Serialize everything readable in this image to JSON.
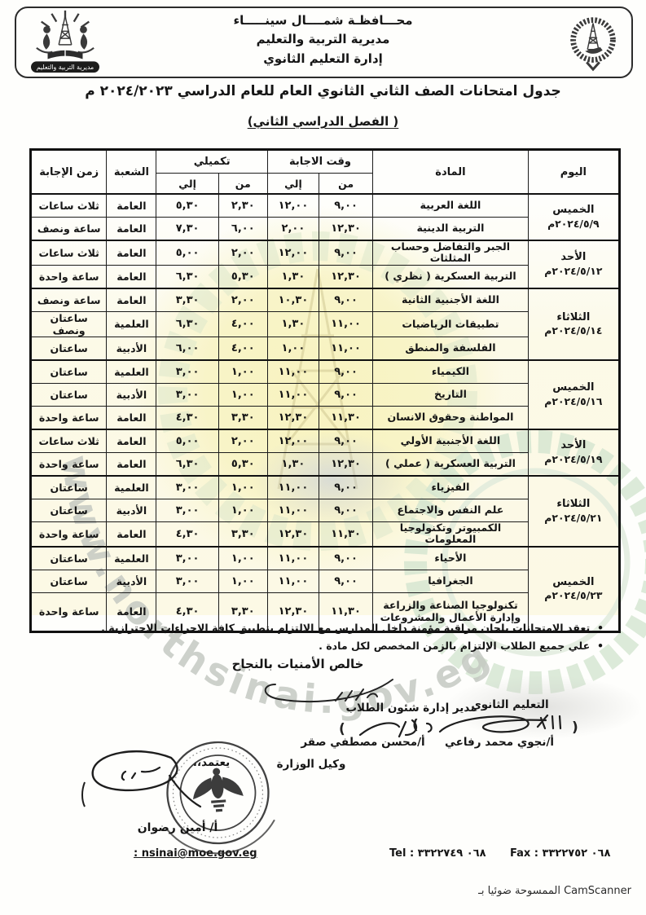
{
  "header": {
    "org_lines": [
      "محـــافظـة شمــــال سينـــــاء",
      "مديرية التربية والتعليم",
      "إدارة التعليم الثانوي"
    ],
    "left_logo_banner": "مديرية التربية والتعليم"
  },
  "title": "جدول امتحانات الصف الثاني الثانوي العام للعام الدراسي ٢٠٢٤/٢٠٢٣ م",
  "subtitle": "( الفصل الدراسي الثاني)",
  "table": {
    "headers": {
      "day": "اليوم",
      "subject": "المادة",
      "answer_time": "وقت الاجابة",
      "supplementary": "تكميلي",
      "from": "من",
      "to": "إلي",
      "branch": "الشعبة",
      "duration": "زمن الإجابة"
    },
    "days": [
      {
        "day": "الخميس",
        "date": "٢٠٢٤/٥/٩م",
        "rows": [
          {
            "subject": "اللغة العربية",
            "from": "٩,٠٠",
            "to": "١٢,٠٠",
            "sup_from": "٢,٣٠",
            "sup_to": "٥,٣٠",
            "branch": "العامة",
            "duration": "ثلاث ساعات"
          },
          {
            "subject": "التربية الدينية",
            "from": "١٢,٣٠",
            "to": "٢,٠٠",
            "sup_from": "٦,٠٠",
            "sup_to": "٧,٣٠",
            "branch": "العامة",
            "duration": "ساعة ونصف"
          }
        ]
      },
      {
        "day": "الأحد",
        "date": "٢٠٢٤/٥/١٢م",
        "rows": [
          {
            "subject": "الجبر والتفاضل وحساب المثلثات",
            "from": "٩,٠٠",
            "to": "١٢,٠٠",
            "sup_from": "٢,٠٠",
            "sup_to": "٥,٠٠",
            "branch": "العامة",
            "duration": "ثلاث ساعات"
          },
          {
            "subject": "التربية العسكرية ( نظري )",
            "from": "١٢,٣٠",
            "to": "١,٣٠",
            "sup_from": "٥,٣٠",
            "sup_to": "٦,٣٠",
            "branch": "العامة",
            "duration": "ساعة واحدة"
          }
        ]
      },
      {
        "day": "الثلاثاء",
        "date": "٢٠٢٤/٥/١٤م",
        "rows": [
          {
            "subject": "اللغة الأجنبية الثانية",
            "from": "٩,٠٠",
            "to": "١٠,٣٠",
            "sup_from": "٢,٠٠",
            "sup_to": "٣,٣٠",
            "branch": "العامة",
            "duration": "ساعة ونصف"
          },
          {
            "subject": "تطبيقات الرياضيات",
            "from": "١١,٠٠",
            "to": "١,٣٠",
            "sup_from": "٤,٠٠",
            "sup_to": "٦,٣٠",
            "branch": "العلمية",
            "duration": "ساعتان ونصف"
          },
          {
            "subject": "الفلسفة والمنطق",
            "from": "١١,٠٠",
            "to": "١,٠٠",
            "sup_from": "٤,٠٠",
            "sup_to": "٦,٠٠",
            "branch": "الأدبية",
            "duration": "ساعتان"
          }
        ]
      },
      {
        "day": "الخميس",
        "date": "٢٠٢٤/٥/١٦م",
        "rows": [
          {
            "subject": "الكيمياء",
            "from": "٩,٠٠",
            "to": "١١,٠٠",
            "sup_from": "١,٠٠",
            "sup_to": "٣,٠٠",
            "branch": "العلمية",
            "duration": "ساعتان"
          },
          {
            "subject": "التاريخ",
            "from": "٩,٠٠",
            "to": "١١,٠٠",
            "sup_from": "١,٠٠",
            "sup_to": "٣,٠٠",
            "branch": "الأدبية",
            "duration": "ساعتان"
          },
          {
            "subject": "المواطنة وحقوق الانسان",
            "from": "١١,٣٠",
            "to": "١٢,٣٠",
            "sup_from": "٣,٣٠",
            "sup_to": "٤,٣٠",
            "branch": "العامة",
            "duration": "ساعة واحدة"
          }
        ]
      },
      {
        "day": "الأحد",
        "date": "٢٠٢٤/٥/١٩م",
        "rows": [
          {
            "subject": "اللغة الأجنبية الأولي",
            "from": "٩,٠٠",
            "to": "١٢,٠٠",
            "sup_from": "٢,٠٠",
            "sup_to": "٥,٠٠",
            "branch": "العامة",
            "duration": "ثلاث ساعات"
          },
          {
            "subject": "التربية العسكرية ( عملي )",
            "from": "١٢,٣٠",
            "to": "١,٣٠",
            "sup_from": "٥,٣٠",
            "sup_to": "٦,٣٠",
            "branch": "العامة",
            "duration": "ساعة واحدة"
          }
        ]
      },
      {
        "day": "الثلاثاء",
        "date": "٢٠٢٤/٥/٢١م",
        "rows": [
          {
            "subject": "الفيزياء",
            "from": "٩,٠٠",
            "to": "١١,٠٠",
            "sup_from": "١,٠٠",
            "sup_to": "٣,٠٠",
            "branch": "العلمية",
            "duration": "ساعتان"
          },
          {
            "subject": "علم النفس والاجتماع",
            "from": "٩,٠٠",
            "to": "١١,٠٠",
            "sup_from": "١,٠٠",
            "sup_to": "٣,٠٠",
            "branch": "الأدبية",
            "duration": "ساعتان",
            "hl": "to"
          },
          {
            "subject": "الكمبيوتر وتكنولوجيا المعلومات",
            "from": "١١,٣٠",
            "to": "١٢,٣٠",
            "sup_from": "٣,٣٠",
            "sup_to": "٤,٣٠",
            "branch": "العامة",
            "duration": "ساعة واحدة"
          }
        ]
      },
      {
        "day": "الخميس",
        "date": "٢٠٢٤/٥/٢٣م",
        "rows": [
          {
            "subject": "الأحياء",
            "from": "٩,٠٠",
            "to": "١١,٠٠",
            "sup_from": "١,٠٠",
            "sup_to": "٣,٠٠",
            "branch": "العلمية",
            "duration": "ساعتان"
          },
          {
            "subject": "الجغرافيا",
            "from": "٩,٠٠",
            "to": "١١,٠٠",
            "sup_from": "١,٠٠",
            "sup_to": "٣,٠٠",
            "branch": "الأدبية",
            "duration": "ساعتان"
          },
          {
            "subject": "تكنولوجيا الصناعة والزراعة وإدارة الأعمال والمشروعات",
            "from": "١١,٣٠",
            "to": "١٢,٣٠",
            "sup_from": "٣,٣٠",
            "sup_to": "٤,٣٠",
            "branch": "العامة",
            "duration": "ساعة واحدة",
            "tall": true
          }
        ]
      }
    ]
  },
  "notes": [
    "تعقد الامتحانات بلجان مراقبة مؤمنة داخل المدارس مع الالتزام بتطبيق كافة الاجراءات الاحترازية .",
    "علي جميع الطلاب الإلتزام بالزمن المخصص لكل مادة ."
  ],
  "closing": "خالص الأمنيات بالنجاح",
  "signatures": {
    "right_label": "التعليم الثانوي",
    "right_name": "أ/نجوي محمد رفاعي",
    "mid_label": "مدير إدارة شئون الطلاب",
    "mid_name": "أ/محسن مصطفي صقر",
    "approve": "يعتمد،،",
    "left_title": "وكيل الوزارة",
    "left_name": "أ/ أمين رضوان"
  },
  "footer": {
    "email": ": nsinai@moe.gov.eg",
    "tel": "Tel : ٠٦٨ ٣٣٢٢٧٤٩",
    "fax": "Fax : ٠٦٨ ٣٣٢٢٧٥٢"
  },
  "scanner_note": "الممسوحة ضوئيا بـ CamScanner",
  "watermark_text": "www.northsinai.gov.eg",
  "colors": {
    "highlight_blue": "#9caae1",
    "watermark_yellow": "#f7f2bb",
    "watermark_green": "#d3e5cf",
    "watermark_gray": "#c2c6c0"
  }
}
